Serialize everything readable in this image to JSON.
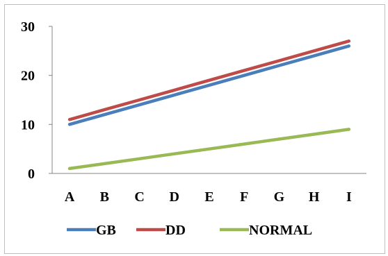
{
  "chart_data": {
    "type": "line",
    "title": "",
    "xlabel": "",
    "ylabel": "",
    "categories": [
      "A",
      "B",
      "C",
      "D",
      "E",
      "F",
      "G",
      "H",
      "I"
    ],
    "ylim": [
      0,
      30
    ],
    "yticks": [
      0,
      10,
      20,
      30
    ],
    "grid": false,
    "legend_position": "bottom",
    "series": [
      {
        "name": "GB",
        "color": "#4a7ebb",
        "values": [
          10,
          12,
          14,
          16,
          18,
          20,
          22,
          24,
          26
        ]
      },
      {
        "name": "DD",
        "color": "#be4b48",
        "values": [
          11,
          13,
          15,
          17,
          19,
          21,
          23,
          25,
          27
        ]
      },
      {
        "name": "NORMAL",
        "color": "#98b954",
        "values": [
          1,
          2,
          3,
          4,
          5,
          6,
          7,
          8,
          9
        ]
      }
    ]
  }
}
